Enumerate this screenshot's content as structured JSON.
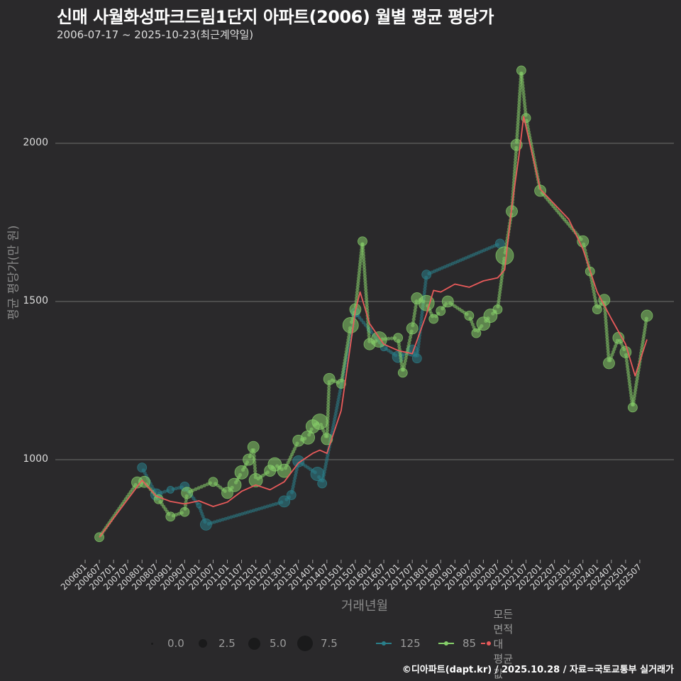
{
  "header": {
    "title": "신매 사월화성파크드림1단지 아파트(2006) 월별 평균 평당가",
    "subtitle": "2006-07-17 ~ 2025-10-23(최근계약일)"
  },
  "footer": {
    "credit": "©디아파트(dapt.kr) / 2025.10.28 / 자료=국토교통부 실거래가"
  },
  "colors": {
    "background": "#2a292b",
    "grid": "#6e6e6e",
    "series_125": "#2a7f8a",
    "series_85": "#86d06a",
    "series_avg": "#e85a5a"
  },
  "legend": {
    "size_title": "",
    "sizes": [
      {
        "label": "0.0",
        "r": 1.5
      },
      {
        "label": "2.5",
        "r": 6
      },
      {
        "label": "5.0",
        "r": 8.5
      },
      {
        "label": "7.5",
        "r": 11
      }
    ],
    "lines": [
      {
        "label": "125",
        "color": "#2a7f8a"
      },
      {
        "label": "85",
        "color": "#86d06a"
      },
      {
        "label": "모든 면적대 평균값",
        "color": "#e85a5a"
      }
    ]
  },
  "chart_data": {
    "type": "scatter",
    "title": "신매 사월화성파크드림1단지 아파트(2006) 월별 평균 평당가",
    "subtitle": "2006-07-17 ~ 2025-10-23(최근계약일)",
    "xlabel": "거래년월",
    "ylabel": "평균 평당가(만 원)",
    "ylim": [
      680,
      2250
    ],
    "yticks": [
      1000,
      1500,
      2000
    ],
    "grid": "horizontal",
    "legend_position": "bottom",
    "x_ticks": [
      "200601",
      "200607",
      "200701",
      "200707",
      "200801",
      "200807",
      "200901",
      "200907",
      "201001",
      "201007",
      "201101",
      "201107",
      "201201",
      "201207",
      "201301",
      "201307",
      "201401",
      "201407",
      "201501",
      "201507",
      "201601",
      "201607",
      "201701",
      "201707",
      "201801",
      "201807",
      "201901",
      "201907",
      "202001",
      "202007",
      "202101",
      "202107",
      "202201",
      "202207",
      "202301",
      "202307",
      "202401",
      "202407",
      "202501",
      "202507"
    ],
    "series": [
      {
        "name": "125",
        "color": "#2a7f8a",
        "points": [
          {
            "x": "200801",
            "y": 975,
            "size": 3
          },
          {
            "x": "200807",
            "y": 890,
            "size": 4
          },
          {
            "x": "200901",
            "y": 905,
            "size": 2
          },
          {
            "x": "200907",
            "y": 915,
            "size": 3
          },
          {
            "x": "201001",
            "y": 855,
            "size": 1
          },
          {
            "x": "201004",
            "y": 795,
            "size": 4
          },
          {
            "x": "201301",
            "y": 868,
            "size": 4
          },
          {
            "x": "201304",
            "y": 888,
            "size": 3
          },
          {
            "x": "201307",
            "y": 995,
            "size": 4
          },
          {
            "x": "201403",
            "y": 955,
            "size": 5
          },
          {
            "x": "201405",
            "y": 925,
            "size": 3
          },
          {
            "x": "201507",
            "y": 1465,
            "size": 3
          },
          {
            "x": "201601",
            "y": 1410,
            "size": 1
          },
          {
            "x": "201607",
            "y": 1355,
            "size": 2
          },
          {
            "x": "201701",
            "y": 1325,
            "size": 4
          },
          {
            "x": "201707",
            "y": 1345,
            "size": 4
          },
          {
            "x": "201709",
            "y": 1320,
            "size": 3
          },
          {
            "x": "201801",
            "y": 1585,
            "size": 3
          },
          {
            "x": "202008",
            "y": 1683,
            "size": 3
          }
        ]
      },
      {
        "name": "85",
        "color": "#86d06a",
        "points": [
          {
            "x": "200607",
            "y": 755,
            "size": 3
          },
          {
            "x": "200711",
            "y": 928,
            "size": 4
          },
          {
            "x": "200802",
            "y": 930,
            "size": 4
          },
          {
            "x": "200808",
            "y": 875,
            "size": 3
          },
          {
            "x": "200901",
            "y": 820,
            "size": 3
          },
          {
            "x": "200907",
            "y": 835,
            "size": 3
          },
          {
            "x": "200908",
            "y": 895,
            "size": 4
          },
          {
            "x": "201007",
            "y": 930,
            "size": 3
          },
          {
            "x": "201101",
            "y": 895,
            "size": 4
          },
          {
            "x": "201104",
            "y": 920,
            "size": 5
          },
          {
            "x": "201107",
            "y": 960,
            "size": 5
          },
          {
            "x": "201110",
            "y": 1000,
            "size": 4
          },
          {
            "x": "201112",
            "y": 1040,
            "size": 4
          },
          {
            "x": "201201",
            "y": 935,
            "size": 5
          },
          {
            "x": "201207",
            "y": 965,
            "size": 4
          },
          {
            "x": "201209",
            "y": 985,
            "size": 5
          },
          {
            "x": "201301",
            "y": 965,
            "size": 5
          },
          {
            "x": "201307",
            "y": 1060,
            "size": 4
          },
          {
            "x": "201311",
            "y": 1070,
            "size": 5
          },
          {
            "x": "201401",
            "y": 1105,
            "size": 5
          },
          {
            "x": "201404",
            "y": 1120,
            "size": 6
          },
          {
            "x": "201407",
            "y": 1065,
            "size": 4
          },
          {
            "x": "201408",
            "y": 1255,
            "size": 4
          },
          {
            "x": "201501",
            "y": 1240,
            "size": 3
          },
          {
            "x": "201505",
            "y": 1425,
            "size": 6
          },
          {
            "x": "201507",
            "y": 1475,
            "size": 4
          },
          {
            "x": "201510",
            "y": 1690,
            "size": 3
          },
          {
            "x": "201601",
            "y": 1365,
            "size": 4
          },
          {
            "x": "201605",
            "y": 1380,
            "size": 6
          },
          {
            "x": "201701",
            "y": 1385,
            "size": 3
          },
          {
            "x": "201703",
            "y": 1275,
            "size": 3
          },
          {
            "x": "201707",
            "y": 1415,
            "size": 4
          },
          {
            "x": "201709",
            "y": 1510,
            "size": 4
          },
          {
            "x": "201801",
            "y": 1495,
            "size": 6
          },
          {
            "x": "201804",
            "y": 1445,
            "size": 3
          },
          {
            "x": "201807",
            "y": 1470,
            "size": 3
          },
          {
            "x": "201810",
            "y": 1500,
            "size": 4
          },
          {
            "x": "201907",
            "y": 1455,
            "size": 3
          },
          {
            "x": "201910",
            "y": 1400,
            "size": 3
          },
          {
            "x": "202001",
            "y": 1430,
            "size": 5
          },
          {
            "x": "202004",
            "y": 1455,
            "size": 5
          },
          {
            "x": "202007",
            "y": 1475,
            "size": 3
          },
          {
            "x": "202010",
            "y": 1645,
            "size": 7
          },
          {
            "x": "202101",
            "y": 1785,
            "size": 4
          },
          {
            "x": "202103",
            "y": 1995,
            "size": 4
          },
          {
            "x": "202105",
            "y": 2230,
            "size": 3
          },
          {
            "x": "202107",
            "y": 2080,
            "size": 3
          },
          {
            "x": "202201",
            "y": 1850,
            "size": 4
          },
          {
            "x": "202307",
            "y": 1690,
            "size": 4
          },
          {
            "x": "202310",
            "y": 1595,
            "size": 3
          },
          {
            "x": "202401",
            "y": 1475,
            "size": 3
          },
          {
            "x": "202404",
            "y": 1505,
            "size": 4
          },
          {
            "x": "202406",
            "y": 1305,
            "size": 4
          },
          {
            "x": "202410",
            "y": 1385,
            "size": 4
          },
          {
            "x": "202501",
            "y": 1340,
            "size": 4
          },
          {
            "x": "202504",
            "y": 1165,
            "size": 3
          },
          {
            "x": "202510",
            "y": 1455,
            "size": 4
          }
        ]
      },
      {
        "name": "모든 면적대 평균값",
        "color": "#e85a5a",
        "type": "line",
        "points": [
          {
            "x": "200607",
            "y": 755
          },
          {
            "x": "200801",
            "y": 935
          },
          {
            "x": "200807",
            "y": 885
          },
          {
            "x": "200901",
            "y": 868
          },
          {
            "x": "200907",
            "y": 860
          },
          {
            "x": "201001",
            "y": 870
          },
          {
            "x": "201007",
            "y": 852
          },
          {
            "x": "201101",
            "y": 866
          },
          {
            "x": "201107",
            "y": 900
          },
          {
            "x": "201201",
            "y": 920
          },
          {
            "x": "201207",
            "y": 905
          },
          {
            "x": "201301",
            "y": 930
          },
          {
            "x": "201307",
            "y": 990
          },
          {
            "x": "201401",
            "y": 1020
          },
          {
            "x": "201404",
            "y": 1030
          },
          {
            "x": "201407",
            "y": 1020
          },
          {
            "x": "201501",
            "y": 1155
          },
          {
            "x": "201507",
            "y": 1470
          },
          {
            "x": "201509",
            "y": 1530
          },
          {
            "x": "201601",
            "y": 1430
          },
          {
            "x": "201607",
            "y": 1365
          },
          {
            "x": "201701",
            "y": 1345
          },
          {
            "x": "201707",
            "y": 1335
          },
          {
            "x": "201801",
            "y": 1460
          },
          {
            "x": "201804",
            "y": 1535
          },
          {
            "x": "201807",
            "y": 1530
          },
          {
            "x": "201901",
            "y": 1555
          },
          {
            "x": "201907",
            "y": 1545
          },
          {
            "x": "202001",
            "y": 1565
          },
          {
            "x": "202007",
            "y": 1575
          },
          {
            "x": "202010",
            "y": 1600
          },
          {
            "x": "202101",
            "y": 1800
          },
          {
            "x": "202104",
            "y": 1960
          },
          {
            "x": "202106",
            "y": 2085
          },
          {
            "x": "202201",
            "y": 1855
          },
          {
            "x": "202301",
            "y": 1760
          },
          {
            "x": "202307",
            "y": 1665
          },
          {
            "x": "202401",
            "y": 1530
          },
          {
            "x": "202407",
            "y": 1445
          },
          {
            "x": "202501",
            "y": 1365
          },
          {
            "x": "202505",
            "y": 1265
          },
          {
            "x": "202510",
            "y": 1380
          }
        ]
      }
    ]
  }
}
